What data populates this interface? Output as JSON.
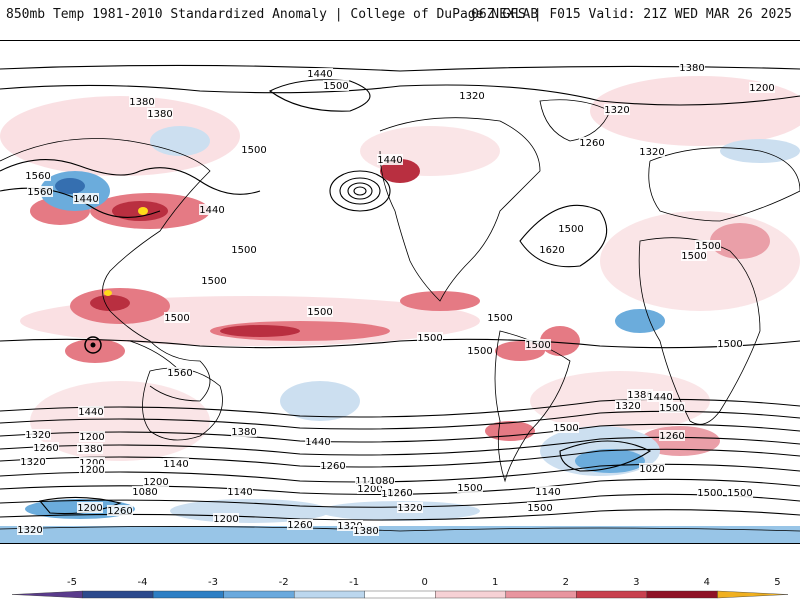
{
  "header": {
    "title": "850mb Temp 1981-2010 Standardized Anomaly | College of DuPage NEXLAB",
    "run_info": "06Z GFS | F015 Valid: 21Z WED MAR 26 2025"
  },
  "map": {
    "field": "850mb temperature standardized anomaly",
    "contour_field": "geopotential height (m)",
    "contour_labels": [
      "1440",
      "1500",
      "1380",
      "1380",
      "1200",
      "1320",
      "1320",
      "1440",
      "1260",
      "1380",
      "1320",
      "1560",
      "1560",
      "1440",
      "1500",
      "1440",
      "1500",
      "1620",
      "1500",
      "1500",
      "1500",
      "1500",
      "1500",
      "1500",
      "1500",
      "1500",
      "1500",
      "1560",
      "1380",
      "1320",
      "1440",
      "1500",
      "1500",
      "1320",
      "1440",
      "1200",
      "1380",
      "1380",
      "1440",
      "1260",
      "1320",
      "1260",
      "1200",
      "1020",
      "1140",
      "1260",
      "1200",
      "1140",
      "1200",
      "1080",
      "1140",
      "1080",
      "1200",
      "1260",
      "1320",
      "1380",
      "1320",
      "1200",
      "1260",
      "1080",
      "1200",
      "1140",
      "1260",
      "1320",
      "1500",
      "1500",
      "1500",
      "1500",
      "1500",
      "1500"
    ],
    "palette": {
      "strong_positive": "#b2182b",
      "positive": "#e26b77",
      "weak_positive": "#f5c7cc",
      "neutral": "#ffffff",
      "weak_negative": "#c7dcef",
      "negative": "#5ba3d9",
      "strong_negative": "#1f5fa8",
      "extreme_positive": "#ffd700",
      "land_outline": "#000000"
    }
  },
  "colorbar": {
    "ticks": [
      "-5",
      "-4",
      "-3",
      "-2",
      "-1",
      "0",
      "1",
      "2",
      "3",
      "4",
      "5"
    ],
    "colors": [
      "#5a3b8c",
      "#2c4a8c",
      "#2e7fc4",
      "#6aa9dd",
      "#bcd7ee",
      "#ffffff",
      "#f6d1d5",
      "#e8959f",
      "#c8414f",
      "#8e1226",
      "#f0b020"
    ]
  }
}
